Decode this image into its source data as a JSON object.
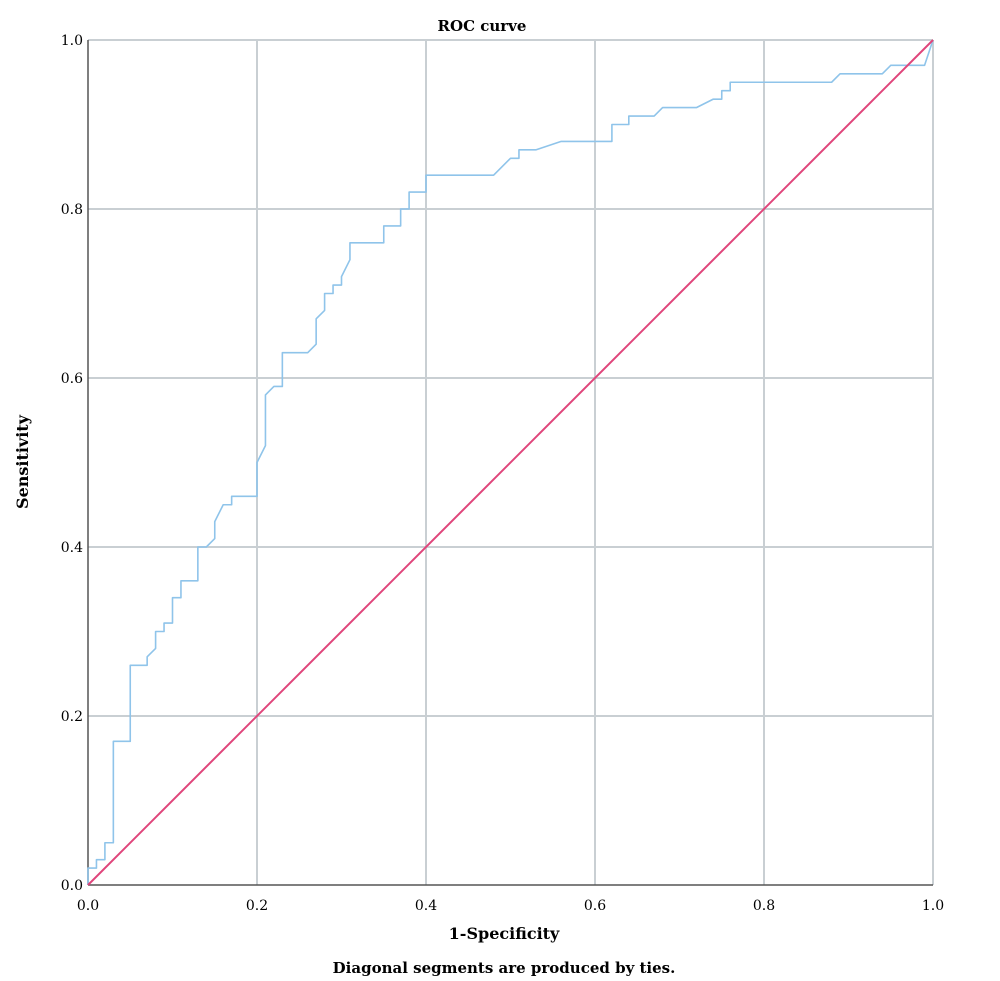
{
  "chart_data": {
    "type": "line",
    "title": "ROC curve",
    "xlabel": "1-Specificity",
    "ylabel": "Sensitivity",
    "footnote": "Diagonal segments are produced by ties.",
    "xlim": [
      0,
      1
    ],
    "ylim": [
      0,
      1
    ],
    "xticks": [
      "0.0",
      "0.2",
      "0.4",
      "0.6",
      "0.8",
      "1.0"
    ],
    "yticks": [
      "0.0",
      "0.2",
      "0.4",
      "0.6",
      "0.8",
      "1.0"
    ],
    "grid": true,
    "colors": {
      "roc": "#8fc4ea",
      "reference": "#e0457b",
      "grid": "#c9cfd3"
    },
    "series": [
      {
        "role": "roc",
        "x": [
          0.0,
          0.0,
          0.01,
          0.01,
          0.02,
          0.02,
          0.03,
          0.03,
          0.05,
          0.05,
          0.07,
          0.07,
          0.08,
          0.08,
          0.09,
          0.09,
          0.1,
          0.1,
          0.11,
          0.11,
          0.13,
          0.13,
          0.14,
          0.15,
          0.15,
          0.16,
          0.17,
          0.17,
          0.2,
          0.2,
          0.21,
          0.21,
          0.22,
          0.23,
          0.23,
          0.26,
          0.27,
          0.27,
          0.28,
          0.28,
          0.29,
          0.29,
          0.3,
          0.3,
          0.31,
          0.31,
          0.35,
          0.35,
          0.37,
          0.37,
          0.38,
          0.38,
          0.4,
          0.4,
          0.48,
          0.5,
          0.51,
          0.51,
          0.53,
          0.56,
          0.62,
          0.62,
          0.64,
          0.64,
          0.67,
          0.68,
          0.72,
          0.74,
          0.75,
          0.75,
          0.76,
          0.76,
          0.8,
          0.88,
          0.89,
          0.94,
          0.95,
          0.98,
          0.99,
          1.0
        ],
        "y": [
          0.0,
          0.02,
          0.02,
          0.03,
          0.03,
          0.05,
          0.05,
          0.17,
          0.17,
          0.26,
          0.26,
          0.27,
          0.28,
          0.3,
          0.3,
          0.31,
          0.31,
          0.34,
          0.34,
          0.36,
          0.36,
          0.4,
          0.4,
          0.41,
          0.43,
          0.45,
          0.45,
          0.46,
          0.46,
          0.5,
          0.52,
          0.58,
          0.59,
          0.59,
          0.63,
          0.63,
          0.64,
          0.67,
          0.68,
          0.7,
          0.7,
          0.71,
          0.71,
          0.72,
          0.74,
          0.76,
          0.76,
          0.78,
          0.78,
          0.8,
          0.8,
          0.82,
          0.82,
          0.84,
          0.84,
          0.86,
          0.86,
          0.87,
          0.87,
          0.88,
          0.88,
          0.9,
          0.9,
          0.91,
          0.91,
          0.92,
          0.92,
          0.93,
          0.93,
          0.94,
          0.94,
          0.95,
          0.95,
          0.95,
          0.96,
          0.96,
          0.97,
          0.97,
          0.97,
          1.0
        ]
      },
      {
        "role": "reference",
        "x": [
          0,
          1
        ],
        "y": [
          0,
          1
        ]
      }
    ]
  }
}
